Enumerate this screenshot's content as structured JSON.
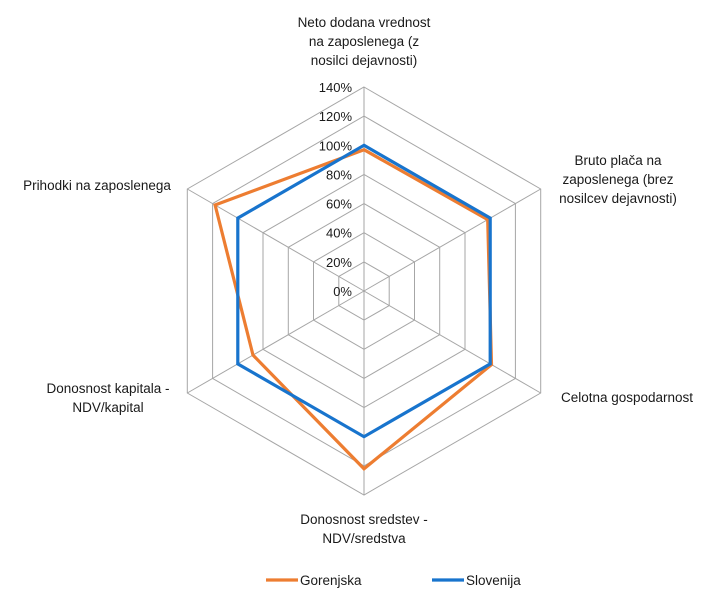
{
  "chart_data": {
    "type": "radar",
    "axes": [
      [
        "Neto dodana vrednost",
        "na zaposlenega (z",
        "nosilci dejavnosti)"
      ],
      [
        "Bruto plača na",
        "zaposlenega (brez",
        "nosilcev dejavnosti)"
      ],
      [
        "Celotna gospodarnost"
      ],
      [
        "Donosnost sredstev -",
        "NDV/sredstva"
      ],
      [
        "Donosnost kapitala -",
        "NDV/kapital"
      ],
      [
        "Prihodki na zaposlenega"
      ]
    ],
    "ticks": [
      "0%",
      "20%",
      "40%",
      "60%",
      "80%",
      "100%",
      "120%",
      "140%"
    ],
    "rlim": [
      0,
      140
    ],
    "series": [
      {
        "name": "Gorenjska",
        "color": "#ED7D31",
        "values": [
          97,
          98,
          101,
          122,
          88,
          118
        ]
      },
      {
        "name": "Slovenija",
        "color": "#1874CD",
        "values": [
          100,
          100,
          100,
          100,
          100,
          100
        ]
      }
    ],
    "legend_position": "bottom",
    "grid": true
  }
}
